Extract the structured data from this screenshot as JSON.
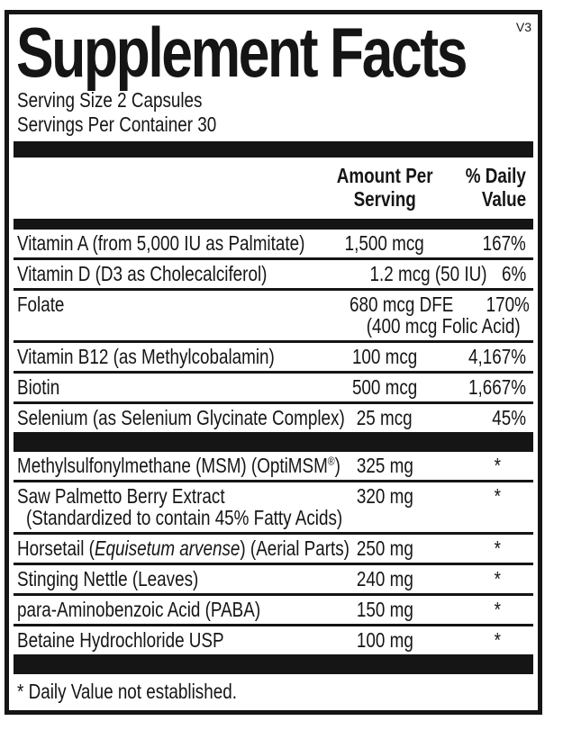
{
  "label": {
    "title": "Supplement Facts",
    "version": "V3",
    "serving_size": "Serving Size 2 Capsules",
    "servings_per_container": "Servings Per Container 30",
    "columns": {
      "amount_line1": "Amount Per",
      "amount_line2": "Serving",
      "dv_line1": "% Daily",
      "dv_line2": "Value"
    },
    "footnote": "* Daily Value not established."
  },
  "rows": [
    {
      "name": "Vitamin A (from 5,000 IU as Palmitate)",
      "amount": "1,500 mcg",
      "dv": "167%"
    },
    {
      "name": "Vitamin D (D3 as Cholecalciferol)",
      "amount": "1.2 mcg (50 IU)",
      "dv": "6%"
    },
    {
      "name": "Folate",
      "amount": "680 mcg DFE",
      "amount_note": "(400 mcg Folic Acid)",
      "dv": "170%"
    },
    {
      "name": "Vitamin B12 (as Methylcobalamin)",
      "amount": "100 mcg",
      "dv": "4,167%"
    },
    {
      "name": "Biotin",
      "amount": "500 mcg",
      "dv": "1,667%"
    },
    {
      "name": "Selenium (as Selenium Glycinate Complex)",
      "amount": "25 mcg",
      "dv": "45%"
    },
    {
      "name_prefix": "Methylsulfonylmethane (MSM) (OptiMSM",
      "name_sup": "®",
      "name_suffix": ")",
      "amount": "325 mg",
      "dv": "*"
    },
    {
      "name": "Saw Palmetto Berry Extract",
      "name_note": "(Standardized to contain 45% Fatty Acids)",
      "amount": "320 mg",
      "dv": "*"
    },
    {
      "name_prefix": "Horsetail (",
      "name_italic": "Equisetum arvense",
      "name_suffix": ") (Aerial Parts)",
      "amount": "250 mg",
      "dv": "*"
    },
    {
      "name": "Stinging Nettle (Leaves)",
      "amount": "240 mg",
      "dv": "*"
    },
    {
      "name": "para-Aminobenzoic Acid (PABA)",
      "amount": "150 mg",
      "dv": "*"
    },
    {
      "name": "Betaine Hydrochloride USP",
      "amount": "100 mg",
      "dv": "*"
    }
  ]
}
